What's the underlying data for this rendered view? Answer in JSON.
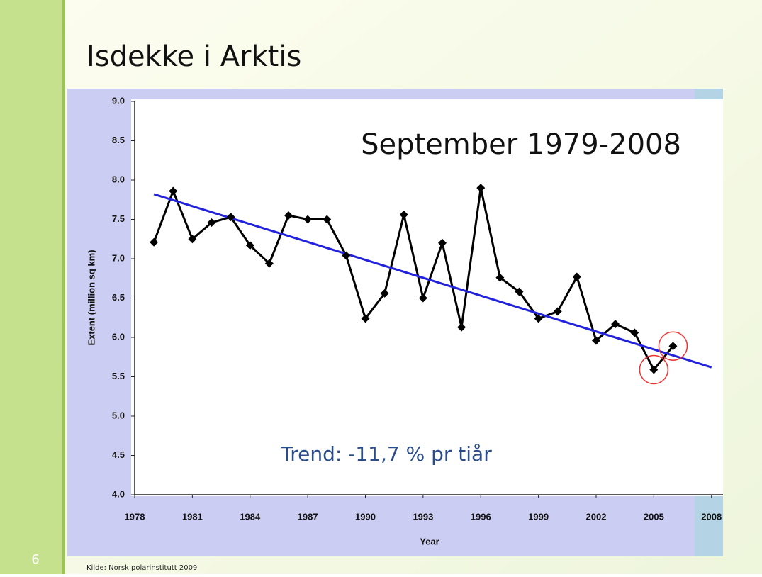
{
  "slide": {
    "title": "Isdekke i Arktis",
    "number": "6",
    "source": "Kilde: Norsk polarinstitutt 2009"
  },
  "chart_data": {
    "type": "line",
    "annotations": [
      "September 1979-2008",
      "Trend: -11,7 % pr tiår"
    ],
    "x_label": "Year",
    "y_label": "Extent (million sq km)",
    "x": [
      1979,
      1980,
      1981,
      1982,
      1983,
      1984,
      1985,
      1986,
      1987,
      1988,
      1989,
      1990,
      1991,
      1992,
      1993,
      1994,
      1995,
      1996,
      1997,
      1998,
      1999,
      2000,
      2001,
      2002,
      2003,
      2004,
      2005,
      2006
    ],
    "series": [
      {
        "color": "#000000",
        "values": [
          7.21,
          7.86,
          7.25,
          7.46,
          7.53,
          7.17,
          6.94,
          7.55,
          7.5,
          7.5,
          7.04,
          6.24,
          6.56,
          7.56,
          6.5,
          7.2,
          6.13,
          7.9,
          6.76,
          6.58,
          6.24,
          6.33,
          6.77,
          5.96,
          6.17,
          6.06,
          5.59,
          5.89
        ]
      }
    ],
    "trend": {
      "color": "#2222dd",
      "x": [
        1979,
        2008
      ],
      "values": [
        7.82,
        5.62
      ]
    },
    "highlight_color": "#ee3333",
    "xlim": [
      1978,
      2008.6
    ],
    "xticks": [
      1978,
      1981,
      1984,
      1987,
      1990,
      1993,
      1996,
      1999,
      2002,
      2005,
      2008
    ],
    "ylim": [
      4,
      9
    ],
    "yticks": [
      {
        "value": 4,
        "label": "4.0"
      },
      {
        "value": 4.5,
        "label": "4.5"
      },
      {
        "value": 5,
        "label": "5.0"
      },
      {
        "value": 5.5,
        "label": "5.5"
      },
      {
        "value": 6,
        "label": "6.0"
      },
      {
        "value": 6.5,
        "label": "6.5"
      },
      {
        "value": 7,
        "label": "7.0"
      },
      {
        "value": 7.5,
        "label": "7.5"
      },
      {
        "value": 8,
        "label": "8.0"
      },
      {
        "value": 8.5,
        "label": "8.5"
      },
      {
        "value": 9,
        "label": "9.0"
      }
    ]
  }
}
